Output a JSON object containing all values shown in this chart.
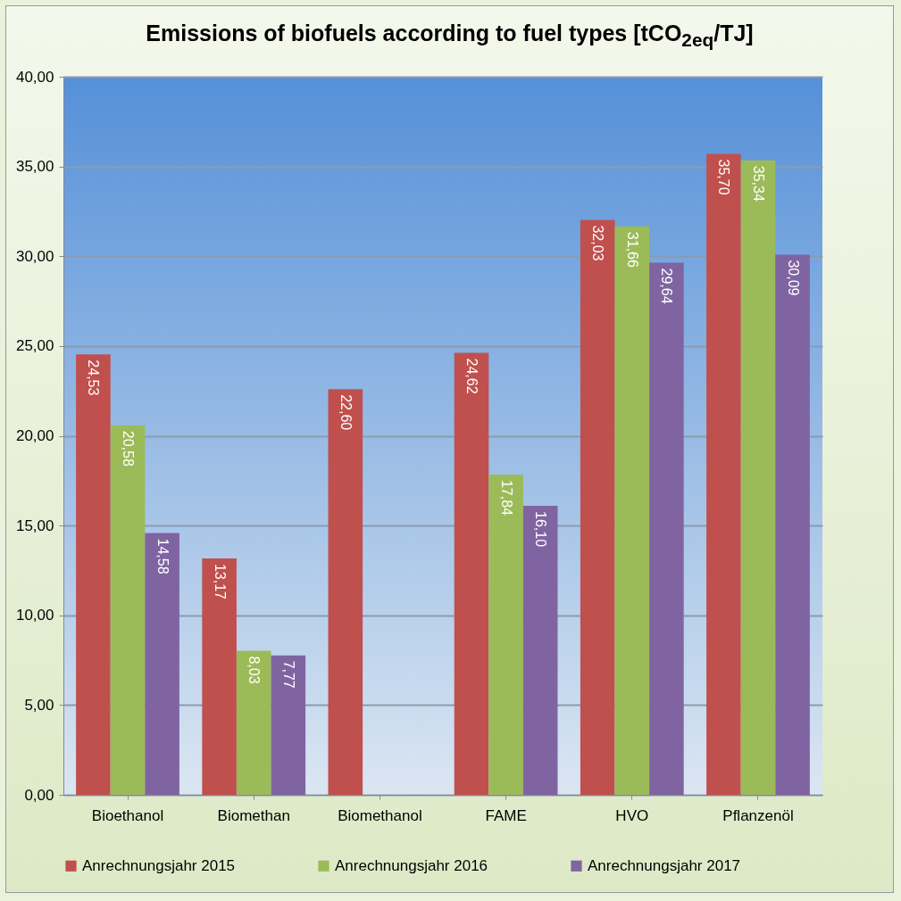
{
  "chart_data": {
    "type": "bar",
    "title": "Emissions of biofuels according to fuel types [tCO$_{2eq}$/TJ]",
    "categories": [
      "Bioethanol",
      "Biomethan",
      "Biomethanol",
      "FAME",
      "HVO",
      "Pflanzenöl"
    ],
    "series": [
      {
        "name": "Anrechnungsjahr 2015",
        "color": "#c0504d",
        "values": [
          24.53,
          13.17,
          22.6,
          24.62,
          32.03,
          35.7
        ],
        "value_labels": [
          "24,53",
          "13,17",
          "22,60",
          "24,62",
          "32,03",
          "35,70"
        ]
      },
      {
        "name": "Anrechnungsjahr 2016",
        "color": "#9bbb59",
        "values": [
          20.58,
          8.03,
          null,
          17.84,
          31.66,
          35.34
        ],
        "value_labels": [
          "20,58",
          "8,03",
          null,
          "17,84",
          "31,66",
          "35,34"
        ]
      },
      {
        "name": "Anrechnungsjahr 2017",
        "color": "#8064a2",
        "values": [
          14.58,
          7.77,
          null,
          16.1,
          29.64,
          30.09
        ],
        "value_labels": [
          "14,58",
          "7,77",
          null,
          "16,10",
          "29,64",
          "30,09"
        ]
      }
    ],
    "ylim": [
      0,
      40
    ],
    "yticks": [
      {
        "value": 0,
        "label": "0,00"
      },
      {
        "value": 5,
        "label": "5,00"
      },
      {
        "value": 10,
        "label": "10,00"
      },
      {
        "value": 15,
        "label": "15,00"
      },
      {
        "value": 20,
        "label": "20,00"
      },
      {
        "value": 25,
        "label": "25,00"
      },
      {
        "value": 30,
        "label": "30,00"
      },
      {
        "value": 35,
        "label": "35,00"
      },
      {
        "value": 40,
        "label": "40,00"
      }
    ],
    "grid": "y",
    "legend": "bottom"
  }
}
